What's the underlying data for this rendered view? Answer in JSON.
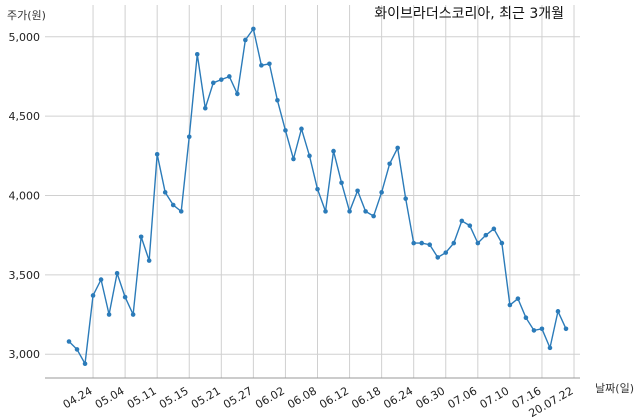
{
  "chart_data": {
    "type": "line",
    "title": "화이브라더스코리아, 최근 3개월",
    "xlabel": "날짜(일)",
    "ylabel": "주가(원)",
    "ylim": [
      2850,
      5150
    ],
    "yticks": [
      3000,
      3500,
      4000,
      4500,
      5000
    ],
    "ytick_labels": [
      "3,000",
      "3,500",
      "4,000",
      "4,500",
      "5,000"
    ],
    "xtick_labels": [
      "04.24",
      "05.04",
      "05.11",
      "05.15",
      "05.21",
      "05.27",
      "06.02",
      "06.08",
      "06.12",
      "06.18",
      "06.24",
      "06.30",
      "07.06",
      "07.10",
      "07.16",
      "20.07.22"
    ],
    "xtick_index": [
      3,
      7,
      11,
      15,
      19,
      23,
      27,
      31,
      35,
      39,
      43,
      47,
      51,
      55,
      59,
      63
    ],
    "grid": true,
    "color": "#2b7bb9",
    "series": [
      {
        "values": [
          3080,
          3030,
          2940,
          3370,
          3470,
          3250,
          3510,
          3360,
          3250,
          3740,
          3590,
          4260,
          4020,
          3940,
          3900,
          4370,
          4890,
          4550,
          4710,
          4730,
          4750,
          4640,
          4980,
          5050,
          4820,
          4830,
          4600,
          4410,
          4230,
          4420,
          4250,
          4040,
          3900,
          4280,
          4080,
          3900,
          4030,
          3900,
          3870,
          4020,
          4200,
          4300,
          3980,
          3700,
          3700,
          3690,
          3610,
          3640,
          3700,
          3840,
          3810,
          3700,
          3750,
          3790,
          3700,
          3310,
          3350,
          3230,
          3150,
          3160,
          3040,
          3270,
          3160
        ]
      }
    ]
  }
}
